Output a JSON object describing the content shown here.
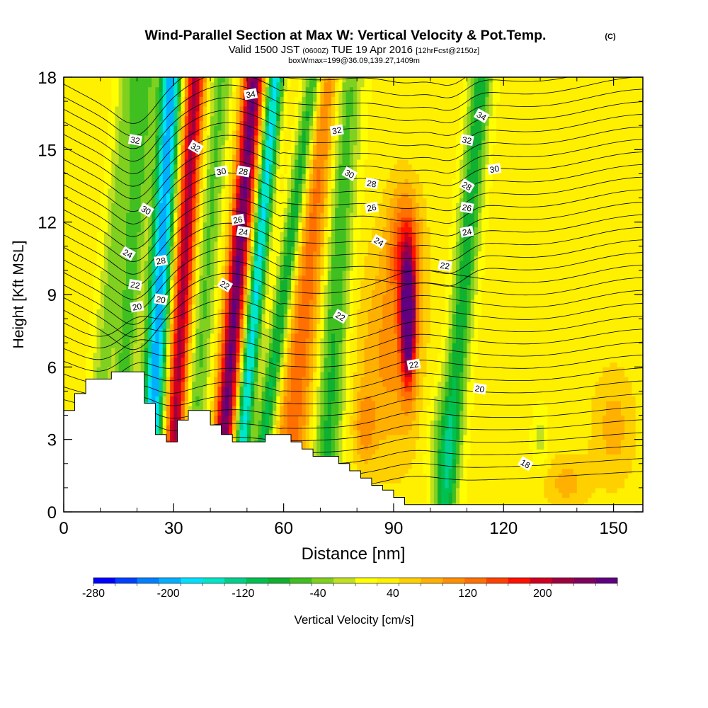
{
  "chart_data": {
    "type": "heatmap",
    "title": "Wind-Parallel Section at Max W: Vertical Velocity & Pot.Temp.",
    "title_units": "(C)",
    "subtitle": {
      "prefix": "Valid 1500 JST",
      "utc": "(0600Z)",
      "date": "TUE 19 Apr 2016",
      "forecast": "[12hrFcst@2150z]"
    },
    "box_label": "boxWmax=199@36.09,139.27,1409m",
    "xlabel": "Distance [nm]",
    "ylabel": "Height [Kft MSL]",
    "xlim": [
      0,
      158
    ],
    "ylim": [
      0,
      18
    ],
    "xticks": [
      0,
      30,
      60,
      90,
      120,
      150
    ],
    "yticks": [
      0,
      3,
      6,
      9,
      12,
      15,
      18
    ],
    "colorbar": {
      "label": "Vertical Velocity [cm/s]",
      "tick_labels": [
        "-280",
        "-200",
        "-120",
        "-40",
        "40",
        "120",
        "200"
      ],
      "tick_values": [
        -280,
        -200,
        -120,
        -40,
        40,
        120,
        200
      ],
      "range": [
        -280,
        280
      ],
      "colors": [
        "#0000ff",
        "#0040ff",
        "#0080ff",
        "#00b0ff",
        "#00e0ff",
        "#00e6c8",
        "#00d08c",
        "#00c050",
        "#10b030",
        "#40c020",
        "#80d020",
        "#c0e020",
        "#ffff00",
        "#fff000",
        "#ffd000",
        "#ffb000",
        "#ff9000",
        "#ff7000",
        "#ff4000",
        "#ff1000",
        "#d00020",
        "#a00040",
        "#800060",
        "#600080"
      ]
    },
    "theta_contour_labels": [
      {
        "text": "34",
        "x": 51,
        "y": 17.3
      },
      {
        "text": "32",
        "x": 19.5,
        "y": 15.4
      },
      {
        "text": "32",
        "x": 36,
        "y": 15.1
      },
      {
        "text": "30",
        "x": 43,
        "y": 14.1
      },
      {
        "text": "28",
        "x": 49,
        "y": 14.1
      },
      {
        "text": "30",
        "x": 22.5,
        "y": 12.5
      },
      {
        "text": "26",
        "x": 47.5,
        "y": 12.1
      },
      {
        "text": "24",
        "x": 49,
        "y": 11.6
      },
      {
        "text": "24",
        "x": 17.5,
        "y": 10.7
      },
      {
        "text": "28",
        "x": 26.5,
        "y": 10.4
      },
      {
        "text": "22",
        "x": 19.5,
        "y": 9.4
      },
      {
        "text": "22",
        "x": 44,
        "y": 9.4
      },
      {
        "text": "20",
        "x": 20,
        "y": 8.5
      },
      {
        "text": "20",
        "x": 26.5,
        "y": 8.8
      },
      {
        "text": "34",
        "x": 114,
        "y": 16.4
      },
      {
        "text": "32",
        "x": 74.5,
        "y": 15.8
      },
      {
        "text": "32",
        "x": 110,
        "y": 15.4
      },
      {
        "text": "30",
        "x": 78,
        "y": 14.0
      },
      {
        "text": "30",
        "x": 117.5,
        "y": 14.2
      },
      {
        "text": "28",
        "x": 84,
        "y": 13.6
      },
      {
        "text": "28",
        "x": 110,
        "y": 13.5
      },
      {
        "text": "26",
        "x": 84,
        "y": 12.6
      },
      {
        "text": "26",
        "x": 110,
        "y": 12.6
      },
      {
        "text": "24",
        "x": 86,
        "y": 11.2
      },
      {
        "text": "24",
        "x": 110,
        "y": 11.6
      },
      {
        "text": "22",
        "x": 104,
        "y": 10.2
      },
      {
        "text": "22",
        "x": 75.5,
        "y": 8.1
      },
      {
        "text": "22",
        "x": 95.5,
        "y": 6.1
      },
      {
        "text": "20",
        "x": 113.5,
        "y": 5.1
      },
      {
        "text": "18",
        "x": 126,
        "y": 2.0
      }
    ],
    "features": {
      "w_bands": [
        {
          "x_base": 23,
          "slope": 0.35,
          "width": 3.0,
          "w": -240
        },
        {
          "x_base": 14,
          "slope": 0.45,
          "width": 3.0,
          "w": -90
        },
        {
          "x_base": 29,
          "slope": 0.38,
          "width": 2.8,
          "w": 190
        },
        {
          "x_base": 42,
          "slope": 0.55,
          "width": 2.8,
          "w": 230
        },
        {
          "x_base": 47,
          "slope": 0.6,
          "width": 2.2,
          "w": -200
        },
        {
          "x_base": 52,
          "slope": 0.9,
          "width": 2.5,
          "w": -140
        },
        {
          "x_base": 34,
          "slope": 0.5,
          "width": 3.0,
          "w": -80
        },
        {
          "x_base": 60,
          "slope": 0.7,
          "width": 5.0,
          "w": 100
        },
        {
          "x_base": 71,
          "slope": 0.35,
          "width": 4.0,
          "w": -110
        },
        {
          "x_base": 104,
          "slope": 0.55,
          "width": 3.0,
          "w": -120
        },
        {
          "x_base": 7,
          "slope": 0.6,
          "width": 3.0,
          "w": -60
        }
      ],
      "w_cells": [
        {
          "x": 94,
          "y": 8.0,
          "sx": 2.0,
          "sy": 2.6,
          "w": 260
        },
        {
          "x": 93,
          "y": 11.0,
          "sx": 4.5,
          "sy": 2.5,
          "w": 110
        },
        {
          "x": 89,
          "y": 6.5,
          "sx": 9,
          "sy": 4.5,
          "w": 70
        },
        {
          "x": 103,
          "y": 3.0,
          "sx": 4,
          "sy": 2.5,
          "w": -60
        },
        {
          "x": 130,
          "y": 3.0,
          "sx": 2.0,
          "sy": 1.2,
          "w": -40
        },
        {
          "x": 137,
          "y": 1.2,
          "sx": 6,
          "sy": 1.2,
          "w": 50
        },
        {
          "x": 150,
          "y": 3.5,
          "sx": 6,
          "sy": 2.5,
          "w": 50
        },
        {
          "x": 82,
          "y": 3.5,
          "sx": 3,
          "sy": 1.5,
          "w": 60
        }
      ]
    },
    "terrain": [
      [
        0,
        4.2
      ],
      [
        3,
        4.2
      ],
      [
        3,
        4.9
      ],
      [
        6,
        4.9
      ],
      [
        6,
        5.5
      ],
      [
        13,
        5.5
      ],
      [
        13,
        5.8
      ],
      [
        22,
        5.8
      ],
      [
        22,
        4.5
      ],
      [
        25,
        4.5
      ],
      [
        25,
        3.2
      ],
      [
        28,
        3.2
      ],
      [
        28,
        2.9
      ],
      [
        31,
        2.9
      ],
      [
        31,
        3.8
      ],
      [
        34,
        3.8
      ],
      [
        34,
        4.2
      ],
      [
        40,
        4.2
      ],
      [
        40,
        3.6
      ],
      [
        43,
        3.6
      ],
      [
        43,
        3.2
      ],
      [
        46,
        3.2
      ],
      [
        46,
        2.9
      ],
      [
        55,
        2.9
      ],
      [
        55,
        3.2
      ],
      [
        62,
        3.2
      ],
      [
        62,
        2.9
      ],
      [
        65,
        2.9
      ],
      [
        65,
        2.6
      ],
      [
        68,
        2.6
      ],
      [
        68,
        2.3
      ],
      [
        75,
        2.3
      ],
      [
        75,
        2.0
      ],
      [
        78,
        2.0
      ],
      [
        78,
        1.7
      ],
      [
        81,
        1.7
      ],
      [
        81,
        1.4
      ],
      [
        84,
        1.4
      ],
      [
        84,
        1.1
      ],
      [
        87,
        1.1
      ],
      [
        87,
        0.9
      ],
      [
        90,
        0.9
      ],
      [
        90,
        0.6
      ],
      [
        93,
        0.6
      ],
      [
        93,
        0.3
      ],
      [
        158,
        0.3
      ]
    ]
  }
}
